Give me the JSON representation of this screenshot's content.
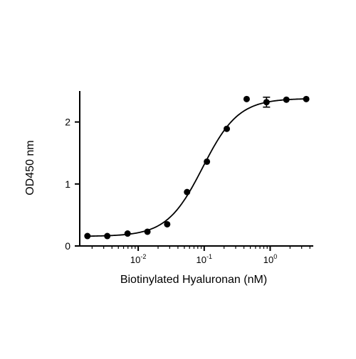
{
  "chart_data": {
    "type": "scatter",
    "title": "",
    "xlabel": "Biotinylated Hyaluronan (nM)",
    "ylabel": "OD450 nm",
    "xscale": "log",
    "xlim": [
      0.0013,
      4.5
    ],
    "ylim": [
      0,
      2.5
    ],
    "x_ticks": [
      {
        "value": 0.01,
        "base": "10",
        "exp": "-2"
      },
      {
        "value": 0.1,
        "base": "10",
        "exp": "-1"
      },
      {
        "value": 1,
        "base": "10",
        "exp": "0"
      }
    ],
    "y_ticks": [
      {
        "value": 0,
        "label": "0"
      },
      {
        "value": 1,
        "label": "1"
      },
      {
        "value": 2,
        "label": "2"
      }
    ],
    "grid": false,
    "legend": "none",
    "marker_color": "#000000",
    "points": [
      {
        "x": 0.0017,
        "y": 0.16,
        "err": 0
      },
      {
        "x": 0.0034,
        "y": 0.16,
        "err": 0
      },
      {
        "x": 0.0069,
        "y": 0.2,
        "err": 0
      },
      {
        "x": 0.0138,
        "y": 0.23,
        "err": 0
      },
      {
        "x": 0.0275,
        "y": 0.35,
        "err": 0
      },
      {
        "x": 0.055,
        "y": 0.87,
        "err": 0
      },
      {
        "x": 0.11,
        "y": 1.36,
        "err": 0
      },
      {
        "x": 0.22,
        "y": 1.89,
        "err": 0
      },
      {
        "x": 0.44,
        "y": 2.37,
        "err": 0
      },
      {
        "x": 0.88,
        "y": 2.32,
        "err": 0.08
      },
      {
        "x": 1.76,
        "y": 2.36,
        "err": 0
      },
      {
        "x": 3.52,
        "y": 2.37,
        "err": 0
      }
    ],
    "fit": {
      "model": "4PL",
      "bottom": 0.155,
      "top": 2.38,
      "ec50": 0.095,
      "hill": 1.6
    }
  }
}
